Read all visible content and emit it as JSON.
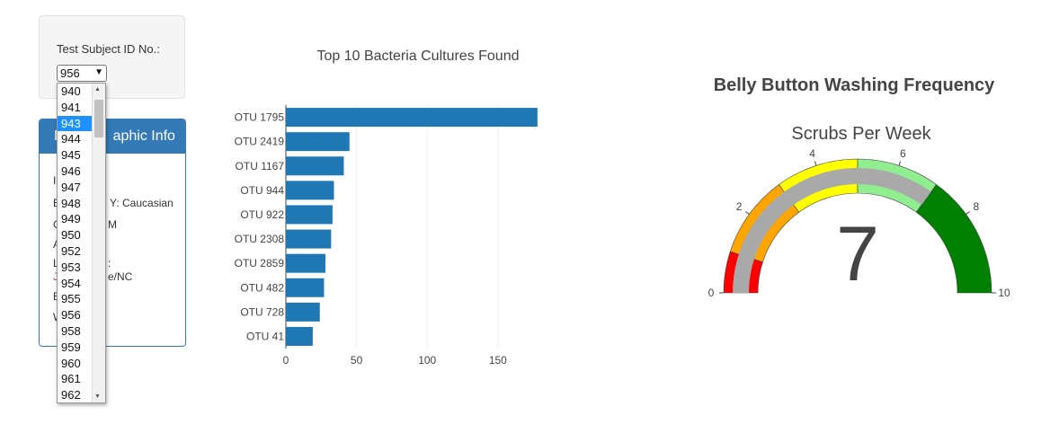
{
  "selector": {
    "label": "Test Subject ID No.:",
    "selected": "956",
    "options": [
      "940",
      "941",
      "943",
      "944",
      "945",
      "946",
      "947",
      "948",
      "949",
      "950",
      "952",
      "953",
      "954",
      "955",
      "956",
      "958",
      "959",
      "960",
      "961",
      "962"
    ],
    "highlighted": "943"
  },
  "panel": {
    "title": "Demographic Info",
    "title_visible": "D",
    "title_visible_end": "aphic Info",
    "lines": [
      "I",
      "E",
      "Y: Caucasian",
      "G",
      "M",
      "A",
      "L",
      ":",
      "J",
      "e/NC",
      "B",
      "W"
    ]
  },
  "bar_chart": {
    "title": "Top 10 Bacteria Cultures Found"
  },
  "gauge": {
    "title": "Belly Button Washing Frequency",
    "subtitle": "Scrubs Per Week",
    "value_text": "7"
  },
  "chart_data": [
    {
      "type": "bar",
      "orientation": "horizontal",
      "title": "Top 10 Bacteria Cultures Found",
      "categories": [
        "OTU 1795",
        "OTU 2419",
        "OTU 1167",
        "OTU 944",
        "OTU 922",
        "OTU 2308",
        "OTU 2859",
        "OTU 482",
        "OTU 728",
        "OTU 41"
      ],
      "values": [
        178,
        45,
        41,
        34,
        33,
        32,
        28,
        27,
        24,
        19
      ],
      "xticks": [
        0,
        50,
        100,
        150
      ],
      "xlim": [
        0,
        180
      ],
      "color": "#1f77b4",
      "grid": true
    },
    {
      "type": "gauge",
      "title": "Scrubs Per Week",
      "value": 7,
      "range": [
        0,
        10
      ],
      "ticks": [
        0,
        2,
        4,
        6,
        8,
        10
      ],
      "bands": [
        {
          "from": 0,
          "to": 1,
          "color": "#ff0000"
        },
        {
          "from": 1,
          "to": 3,
          "color": "#ffa500"
        },
        {
          "from": 3,
          "to": 5,
          "color": "#ffff00"
        },
        {
          "from": 5,
          "to": 7,
          "color": "#90ee90"
        },
        {
          "from": 7,
          "to": 10,
          "color": "#008000"
        }
      ],
      "bar_color": "#a9a9a9"
    }
  ]
}
